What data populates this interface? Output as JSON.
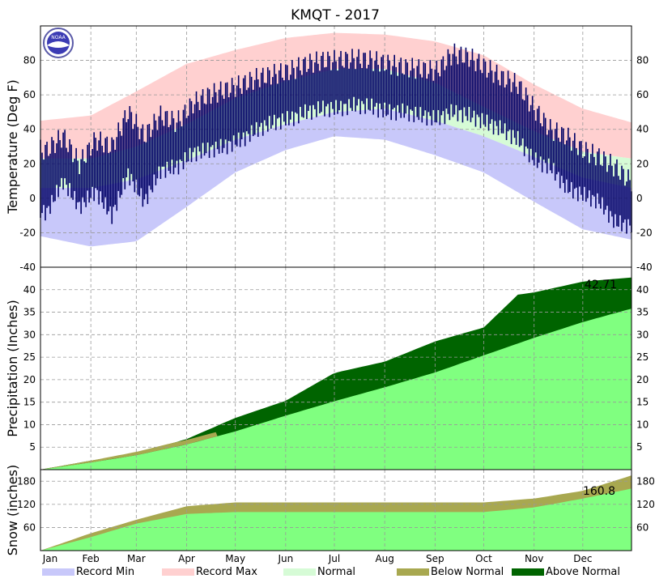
{
  "chart_data": [
    {
      "type": "line",
      "panel": "temperature",
      "title": "KMQT - 2017",
      "ylabel": "Temperature (Deg F)",
      "ylim": [
        -40,
        100
      ],
      "yticks": [
        -40,
        -20,
        0,
        20,
        40,
        60,
        80
      ],
      "grid": true,
      "months": [
        "Jan",
        "Feb",
        "Mar",
        "Apr",
        "May",
        "Jun",
        "Jul",
        "Aug",
        "Sep",
        "Oct",
        "Nov",
        "Dec"
      ],
      "month_days": [
        1,
        32,
        60,
        91,
        121,
        152,
        182,
        213,
        244,
        274,
        305,
        335
      ],
      "normal_high": [
        {
          "day": 1,
          "value": 23
        },
        {
          "day": 32,
          "value": 23
        },
        {
          "day": 60,
          "value": 30
        },
        {
          "day": 91,
          "value": 43
        },
        {
          "day": 121,
          "value": 58
        },
        {
          "day": 152,
          "value": 68
        },
        {
          "day": 182,
          "value": 75
        },
        {
          "day": 213,
          "value": 75
        },
        {
          "day": 244,
          "value": 67
        },
        {
          "day": 274,
          "value": 53
        },
        {
          "day": 305,
          "value": 39
        },
        {
          "day": 335,
          "value": 27
        },
        {
          "day": 365,
          "value": 23
        }
      ],
      "normal_low": [
        {
          "day": 1,
          "value": 6
        },
        {
          "day": 32,
          "value": 6
        },
        {
          "day": 60,
          "value": 11
        },
        {
          "day": 91,
          "value": 22
        },
        {
          "day": 121,
          "value": 34
        },
        {
          "day": 152,
          "value": 43
        },
        {
          "day": 182,
          "value": 50
        },
        {
          "day": 213,
          "value": 52
        },
        {
          "day": 244,
          "value": 45
        },
        {
          "day": 274,
          "value": 36
        },
        {
          "day": 305,
          "value": 24
        },
        {
          "day": 335,
          "value": 12
        },
        {
          "day": 365,
          "value": 6
        }
      ],
      "record_max": [
        {
          "day": 1,
          "value": 45
        },
        {
          "day": 32,
          "value": 48
        },
        {
          "day": 60,
          "value": 62
        },
        {
          "day": 91,
          "value": 78
        },
        {
          "day": 121,
          "value": 86
        },
        {
          "day": 152,
          "value": 93
        },
        {
          "day": 182,
          "value": 96
        },
        {
          "day": 213,
          "value": 95
        },
        {
          "day": 244,
          "value": 91
        },
        {
          "day": 274,
          "value": 83
        },
        {
          "day": 305,
          "value": 66
        },
        {
          "day": 335,
          "value": 52
        },
        {
          "day": 365,
          "value": 44
        }
      ],
      "record_min": [
        {
          "day": 1,
          "value": -22
        },
        {
          "day": 32,
          "value": -28
        },
        {
          "day": 60,
          "value": -25
        },
        {
          "day": 91,
          "value": -5
        },
        {
          "day": 121,
          "value": 15
        },
        {
          "day": 152,
          "value": 28
        },
        {
          "day": 182,
          "value": 36
        },
        {
          "day": 213,
          "value": 34
        },
        {
          "day": 244,
          "value": 25
        },
        {
          "day": 274,
          "value": 15
        },
        {
          "day": 305,
          "value": -2
        },
        {
          "day": 335,
          "value": -18
        },
        {
          "day": 365,
          "value": -24
        }
      ],
      "observed_high": [
        {
          "day": 5,
          "value": 28
        },
        {
          "day": 15,
          "value": 36
        },
        {
          "day": 25,
          "value": 20
        },
        {
          "day": 35,
          "value": 34
        },
        {
          "day": 45,
          "value": 30
        },
        {
          "day": 55,
          "value": 50
        },
        {
          "day": 65,
          "value": 36
        },
        {
          "day": 75,
          "value": 48
        },
        {
          "day": 85,
          "value": 44
        },
        {
          "day": 95,
          "value": 55
        },
        {
          "day": 105,
          "value": 60
        },
        {
          "day": 115,
          "value": 63
        },
        {
          "day": 125,
          "value": 66
        },
        {
          "day": 135,
          "value": 70
        },
        {
          "day": 145,
          "value": 72
        },
        {
          "day": 155,
          "value": 74
        },
        {
          "day": 165,
          "value": 78
        },
        {
          "day": 175,
          "value": 80
        },
        {
          "day": 185,
          "value": 80
        },
        {
          "day": 195,
          "value": 81
        },
        {
          "day": 205,
          "value": 80
        },
        {
          "day": 215,
          "value": 78
        },
        {
          "day": 225,
          "value": 76
        },
        {
          "day": 235,
          "value": 75
        },
        {
          "day": 245,
          "value": 74
        },
        {
          "day": 255,
          "value": 84
        },
        {
          "day": 265,
          "value": 82
        },
        {
          "day": 275,
          "value": 76
        },
        {
          "day": 285,
          "value": 70
        },
        {
          "day": 295,
          "value": 66
        },
        {
          "day": 305,
          "value": 52
        },
        {
          "day": 315,
          "value": 40
        },
        {
          "day": 325,
          "value": 36
        },
        {
          "day": 335,
          "value": 28
        },
        {
          "day": 345,
          "value": 24
        },
        {
          "day": 355,
          "value": 18
        },
        {
          "day": 364,
          "value": 10
        }
      ],
      "observed_low": [
        {
          "day": 5,
          "value": -8
        },
        {
          "day": 15,
          "value": 10
        },
        {
          "day": 25,
          "value": -5
        },
        {
          "day": 35,
          "value": 4
        },
        {
          "day": 45,
          "value": -10
        },
        {
          "day": 55,
          "value": 14
        },
        {
          "day": 65,
          "value": -2
        },
        {
          "day": 75,
          "value": 16
        },
        {
          "day": 85,
          "value": 18
        },
        {
          "day": 95,
          "value": 26
        },
        {
          "day": 105,
          "value": 28
        },
        {
          "day": 115,
          "value": 30
        },
        {
          "day": 125,
          "value": 34
        },
        {
          "day": 135,
          "value": 40
        },
        {
          "day": 145,
          "value": 44
        },
        {
          "day": 155,
          "value": 46
        },
        {
          "day": 165,
          "value": 50
        },
        {
          "day": 175,
          "value": 52
        },
        {
          "day": 185,
          "value": 52
        },
        {
          "day": 195,
          "value": 54
        },
        {
          "day": 205,
          "value": 53
        },
        {
          "day": 215,
          "value": 50
        },
        {
          "day": 225,
          "value": 50
        },
        {
          "day": 235,
          "value": 48
        },
        {
          "day": 245,
          "value": 46
        },
        {
          "day": 255,
          "value": 50
        },
        {
          "day": 265,
          "value": 48
        },
        {
          "day": 275,
          "value": 44
        },
        {
          "day": 285,
          "value": 40
        },
        {
          "day": 295,
          "value": 34
        },
        {
          "day": 305,
          "value": 22
        },
        {
          "day": 315,
          "value": 18
        },
        {
          "day": 325,
          "value": 6
        },
        {
          "day": 335,
          "value": 2
        },
        {
          "day": 345,
          "value": -2
        },
        {
          "day": 355,
          "value": -14
        },
        {
          "day": 364,
          "value": -16
        }
      ]
    },
    {
      "type": "area",
      "panel": "precipitation",
      "ylabel": "Precipitation (Inches)",
      "ylim": [
        0,
        45
      ],
      "yticks": [
        5,
        10,
        15,
        20,
        25,
        30,
        35,
        40
      ],
      "annotation": "42.71",
      "normal_cumulative": [
        {
          "day": 1,
          "value": 0
        },
        {
          "day": 32,
          "value": 1.6
        },
        {
          "day": 60,
          "value": 3.2
        },
        {
          "day": 91,
          "value": 5.6
        },
        {
          "day": 121,
          "value": 8.5
        },
        {
          "day": 152,
          "value": 12
        },
        {
          "day": 182,
          "value": 15.2
        },
        {
          "day": 213,
          "value": 18.3
        },
        {
          "day": 244,
          "value": 21.6
        },
        {
          "day": 274,
          "value": 25.4
        },
        {
          "day": 305,
          "value": 29.3
        },
        {
          "day": 335,
          "value": 32.8
        },
        {
          "day": 365,
          "value": 35.8
        }
      ],
      "observed_cumulative": [
        {
          "day": 1,
          "value": 0
        },
        {
          "day": 32,
          "value": 2
        },
        {
          "day": 60,
          "value": 3.6
        },
        {
          "day": 91,
          "value": 6.8
        },
        {
          "day": 121,
          "value": 11.5
        },
        {
          "day": 152,
          "value": 15.3
        },
        {
          "day": 182,
          "value": 21.5
        },
        {
          "day": 213,
          "value": 24
        },
        {
          "day": 244,
          "value": 28.5
        },
        {
          "day": 274,
          "value": 31.6
        },
        {
          "day": 295,
          "value": 38.9
        },
        {
          "day": 305,
          "value": 39.4
        },
        {
          "day": 335,
          "value": 41.8
        },
        {
          "day": 365,
          "value": 42.71
        }
      ]
    },
    {
      "type": "area",
      "panel": "snow",
      "ylabel": "Snow (inches)",
      "ylim": [
        0,
        210
      ],
      "yticks": [
        60,
        120,
        180
      ],
      "annotation": "160.8",
      "normal_cumulative": [
        {
          "day": 1,
          "value": 0
        },
        {
          "day": 32,
          "value": 35
        },
        {
          "day": 60,
          "value": 70
        },
        {
          "day": 91,
          "value": 95
        },
        {
          "day": 121,
          "value": 100
        },
        {
          "day": 152,
          "value": 100
        },
        {
          "day": 182,
          "value": 100
        },
        {
          "day": 213,
          "value": 100
        },
        {
          "day": 244,
          "value": 100
        },
        {
          "day": 274,
          "value": 100
        },
        {
          "day": 305,
          "value": 112
        },
        {
          "day": 335,
          "value": 135
        },
        {
          "day": 365,
          "value": 160.8
        }
      ],
      "observed_cumulative": [
        {
          "day": 1,
          "value": 0
        },
        {
          "day": 32,
          "value": 45
        },
        {
          "day": 60,
          "value": 80
        },
        {
          "day": 91,
          "value": 115
        },
        {
          "day": 121,
          "value": 125
        },
        {
          "day": 152,
          "value": 125
        },
        {
          "day": 182,
          "value": 125
        },
        {
          "day": 213,
          "value": 125
        },
        {
          "day": 244,
          "value": 125
        },
        {
          "day": 274,
          "value": 125
        },
        {
          "day": 305,
          "value": 135
        },
        {
          "day": 335,
          "value": 155
        },
        {
          "day": 365,
          "value": 195
        }
      ]
    }
  ],
  "legend": [
    {
      "label": "Record Min",
      "color": "#c8c8fa"
    },
    {
      "label": "Record Max",
      "color": "#ffd0d0"
    },
    {
      "label": "Normal",
      "color": "#d6fbd6"
    },
    {
      "label": "Below Normal",
      "color": "#a8a850"
    },
    {
      "label": "Above Normal",
      "color": "#006400"
    }
  ],
  "colors": {
    "record_min": "#c8c8fa",
    "record_max": "#ffd0d0",
    "normal": "#d6fbd6",
    "observed": "#000066",
    "normal_precip": "#80ff80",
    "above": "#006400",
    "below": "#a8a850"
  },
  "logo_text": "NOAA"
}
